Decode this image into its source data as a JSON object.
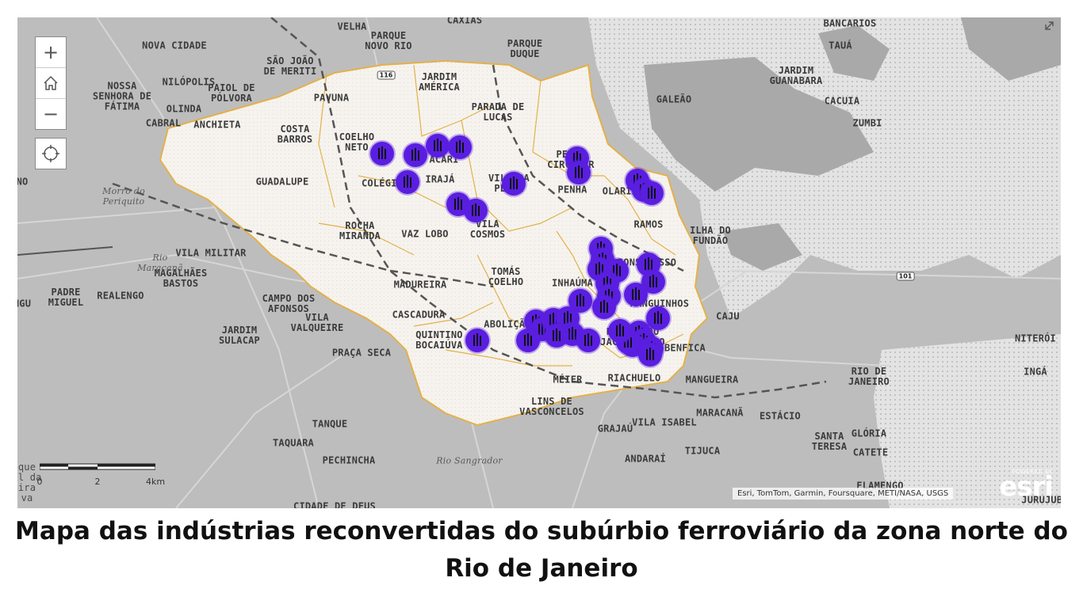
{
  "map": {
    "labels": [
      {
        "name": "VELHA",
        "cls": ""
      },
      {
        "name": "CAXIAS",
        "cls": ""
      },
      {
        "name": "PARQUE\nNOVO RIO",
        "cls": ""
      },
      {
        "name": "PARQUE\nDUQUE",
        "cls": ""
      },
      {
        "name": "BANCARIOS",
        "cls": ""
      },
      {
        "name": "TAUÁ",
        "cls": ""
      },
      {
        "name": "NOVA CIDADE",
        "cls": ""
      },
      {
        "name": "SÃO JOÃO\nDE MERITI",
        "cls": ""
      },
      {
        "name": "JARDIM\nAMÉRICA",
        "cls": ""
      },
      {
        "name": "JARDIM\nGUANABARA",
        "cls": ""
      },
      {
        "name": "NOSSA\nSENHORA DE\nFÁTIMA",
        "cls": ""
      },
      {
        "name": "NILÓPOLIS",
        "cls": ""
      },
      {
        "name": "PAIOL DE\nPÓLVORA",
        "cls": ""
      },
      {
        "name": "PAVUNA",
        "cls": ""
      },
      {
        "name": "PARADA DE\nLUCAS",
        "cls": ""
      },
      {
        "name": "GALEÃO",
        "cls": ""
      },
      {
        "name": "CACUIA",
        "cls": ""
      },
      {
        "name": "OLINDA",
        "cls": ""
      },
      {
        "name": "CABRAL",
        "cls": ""
      },
      {
        "name": "ANCHIETA",
        "cls": ""
      },
      {
        "name": "COSTA\nBARROS",
        "cls": ""
      },
      {
        "name": "ZUMBI",
        "cls": ""
      },
      {
        "name": "COELHO\nNETO",
        "cls": ""
      },
      {
        "name": "ACARI",
        "cls": ""
      },
      {
        "name": "PENHA\nCIRCULAR",
        "cls": ""
      },
      {
        "name": "GUADALUPE",
        "cls": ""
      },
      {
        "name": "COLÉGIO",
        "cls": ""
      },
      {
        "name": "IRAJÁ",
        "cls": ""
      },
      {
        "name": "VILA DA\nPENHA",
        "cls": ""
      },
      {
        "name": "PENHA",
        "cls": ""
      },
      {
        "name": "OLARIA",
        "cls": ""
      },
      {
        "name": "Morro do\nPeriquito",
        "cls": "serif"
      },
      {
        "name": "RAMOS",
        "cls": ""
      },
      {
        "name": "ROCHA\nMIRANDA",
        "cls": ""
      },
      {
        "name": "VAZ LOBO",
        "cls": ""
      },
      {
        "name": "VILA\nCOSMOS",
        "cls": ""
      },
      {
        "name": "ILHA DO\nFUNDÃO",
        "cls": ""
      },
      {
        "name": "VILA MILITAR",
        "cls": ""
      },
      {
        "name": "MAGALHÃES\nBASTOS",
        "cls": ""
      },
      {
        "name": "BONSUCESSO",
        "cls": ""
      },
      {
        "name": "TOMÁS\nCOELHO",
        "cls": ""
      },
      {
        "name": "MADUREIRA",
        "cls": ""
      },
      {
        "name": "INHAÚMA",
        "cls": ""
      },
      {
        "name": "PADRE\nMIGUEL",
        "cls": ""
      },
      {
        "name": "REALENGO",
        "cls": ""
      },
      {
        "name": "MANGUINHOS",
        "cls": ""
      },
      {
        "name": "CAMPO DOS\nAFONSOS",
        "cls": ""
      },
      {
        "name": "CASCADURA",
        "cls": ""
      },
      {
        "name": "CAJU",
        "cls": ""
      },
      {
        "name": "VILA\nVALQUEIRE",
        "cls": ""
      },
      {
        "name": "ABOLIÇÃO",
        "cls": ""
      },
      {
        "name": "FAVELA DO\nJACAREZINHO",
        "cls": ""
      },
      {
        "name": "JARDIM\nSULACAP",
        "cls": ""
      },
      {
        "name": "QUINTINO\nBOCAIÚVA",
        "cls": ""
      },
      {
        "name": "BENFICA",
        "cls": ""
      },
      {
        "name": "NITERÓI",
        "cls": ""
      },
      {
        "name": "PRAÇA SECA",
        "cls": ""
      },
      {
        "name": "RIO DE\nJANEIRO",
        "cls": ""
      },
      {
        "name": "INGÁ",
        "cls": ""
      },
      {
        "name": "MÉIER",
        "cls": ""
      },
      {
        "name": "RIACHUELO",
        "cls": ""
      },
      {
        "name": "MANGUEIRA",
        "cls": ""
      },
      {
        "name": "LINS DE\nVASCONCELOS",
        "cls": ""
      },
      {
        "name": "MARACANÃ",
        "cls": ""
      },
      {
        "name": "ESTÁCIO",
        "cls": ""
      },
      {
        "name": "TANQUE",
        "cls": ""
      },
      {
        "name": "GRAJAÚ",
        "cls": ""
      },
      {
        "name": "VILA ISABEL",
        "cls": ""
      },
      {
        "name": "SANTA\nTERESA",
        "cls": ""
      },
      {
        "name": "GLÓRIA",
        "cls": ""
      },
      {
        "name": "CATETE",
        "cls": ""
      },
      {
        "name": "TAQUARA",
        "cls": ""
      },
      {
        "name": "TIJUCA",
        "cls": ""
      },
      {
        "name": "PECHINCHA",
        "cls": ""
      },
      {
        "name": "ANDARAÍ",
        "cls": ""
      },
      {
        "name": "FLAMENGO",
        "cls": ""
      },
      {
        "name": "JURUJUBA",
        "cls": ""
      },
      {
        "name": "CIDADE DE DEUS",
        "cls": ""
      },
      {
        "name": "Rio\nMaracanã",
        "cls": "serif"
      },
      {
        "name": "Rio Sangrador",
        "cls": "serif"
      },
      {
        "name": "NO",
        "cls": ""
      },
      {
        "name": "NGU",
        "cls": ""
      },
      {
        "name": "que\nal da\nira\nva",
        "cls": "light"
      }
    ],
    "shields": [
      "116",
      "101"
    ],
    "scale": {
      "ticks": [
        "0",
        "2",
        "4km"
      ]
    },
    "attribution": "Esri, TomTom, Garmin, Foursquare, METI/NASA, USGS",
    "esri": {
      "powered": "POWERED BY",
      "name": "esri"
    },
    "controls": {
      "zoom_in": "+",
      "zoom_out": "−",
      "home_icon": "home-icon",
      "locate_icon": "locate-icon",
      "expand_icon": "expand-icon"
    },
    "marker_count": 41,
    "marker_color": "#5a1ee0",
    "region_fill": "#f6f3ee",
    "boundary_color": "#e3b14a"
  },
  "caption": "Mapa das indústrias reconvertidas do subúrbio ferroviário da zona norte do Rio de Janeiro"
}
